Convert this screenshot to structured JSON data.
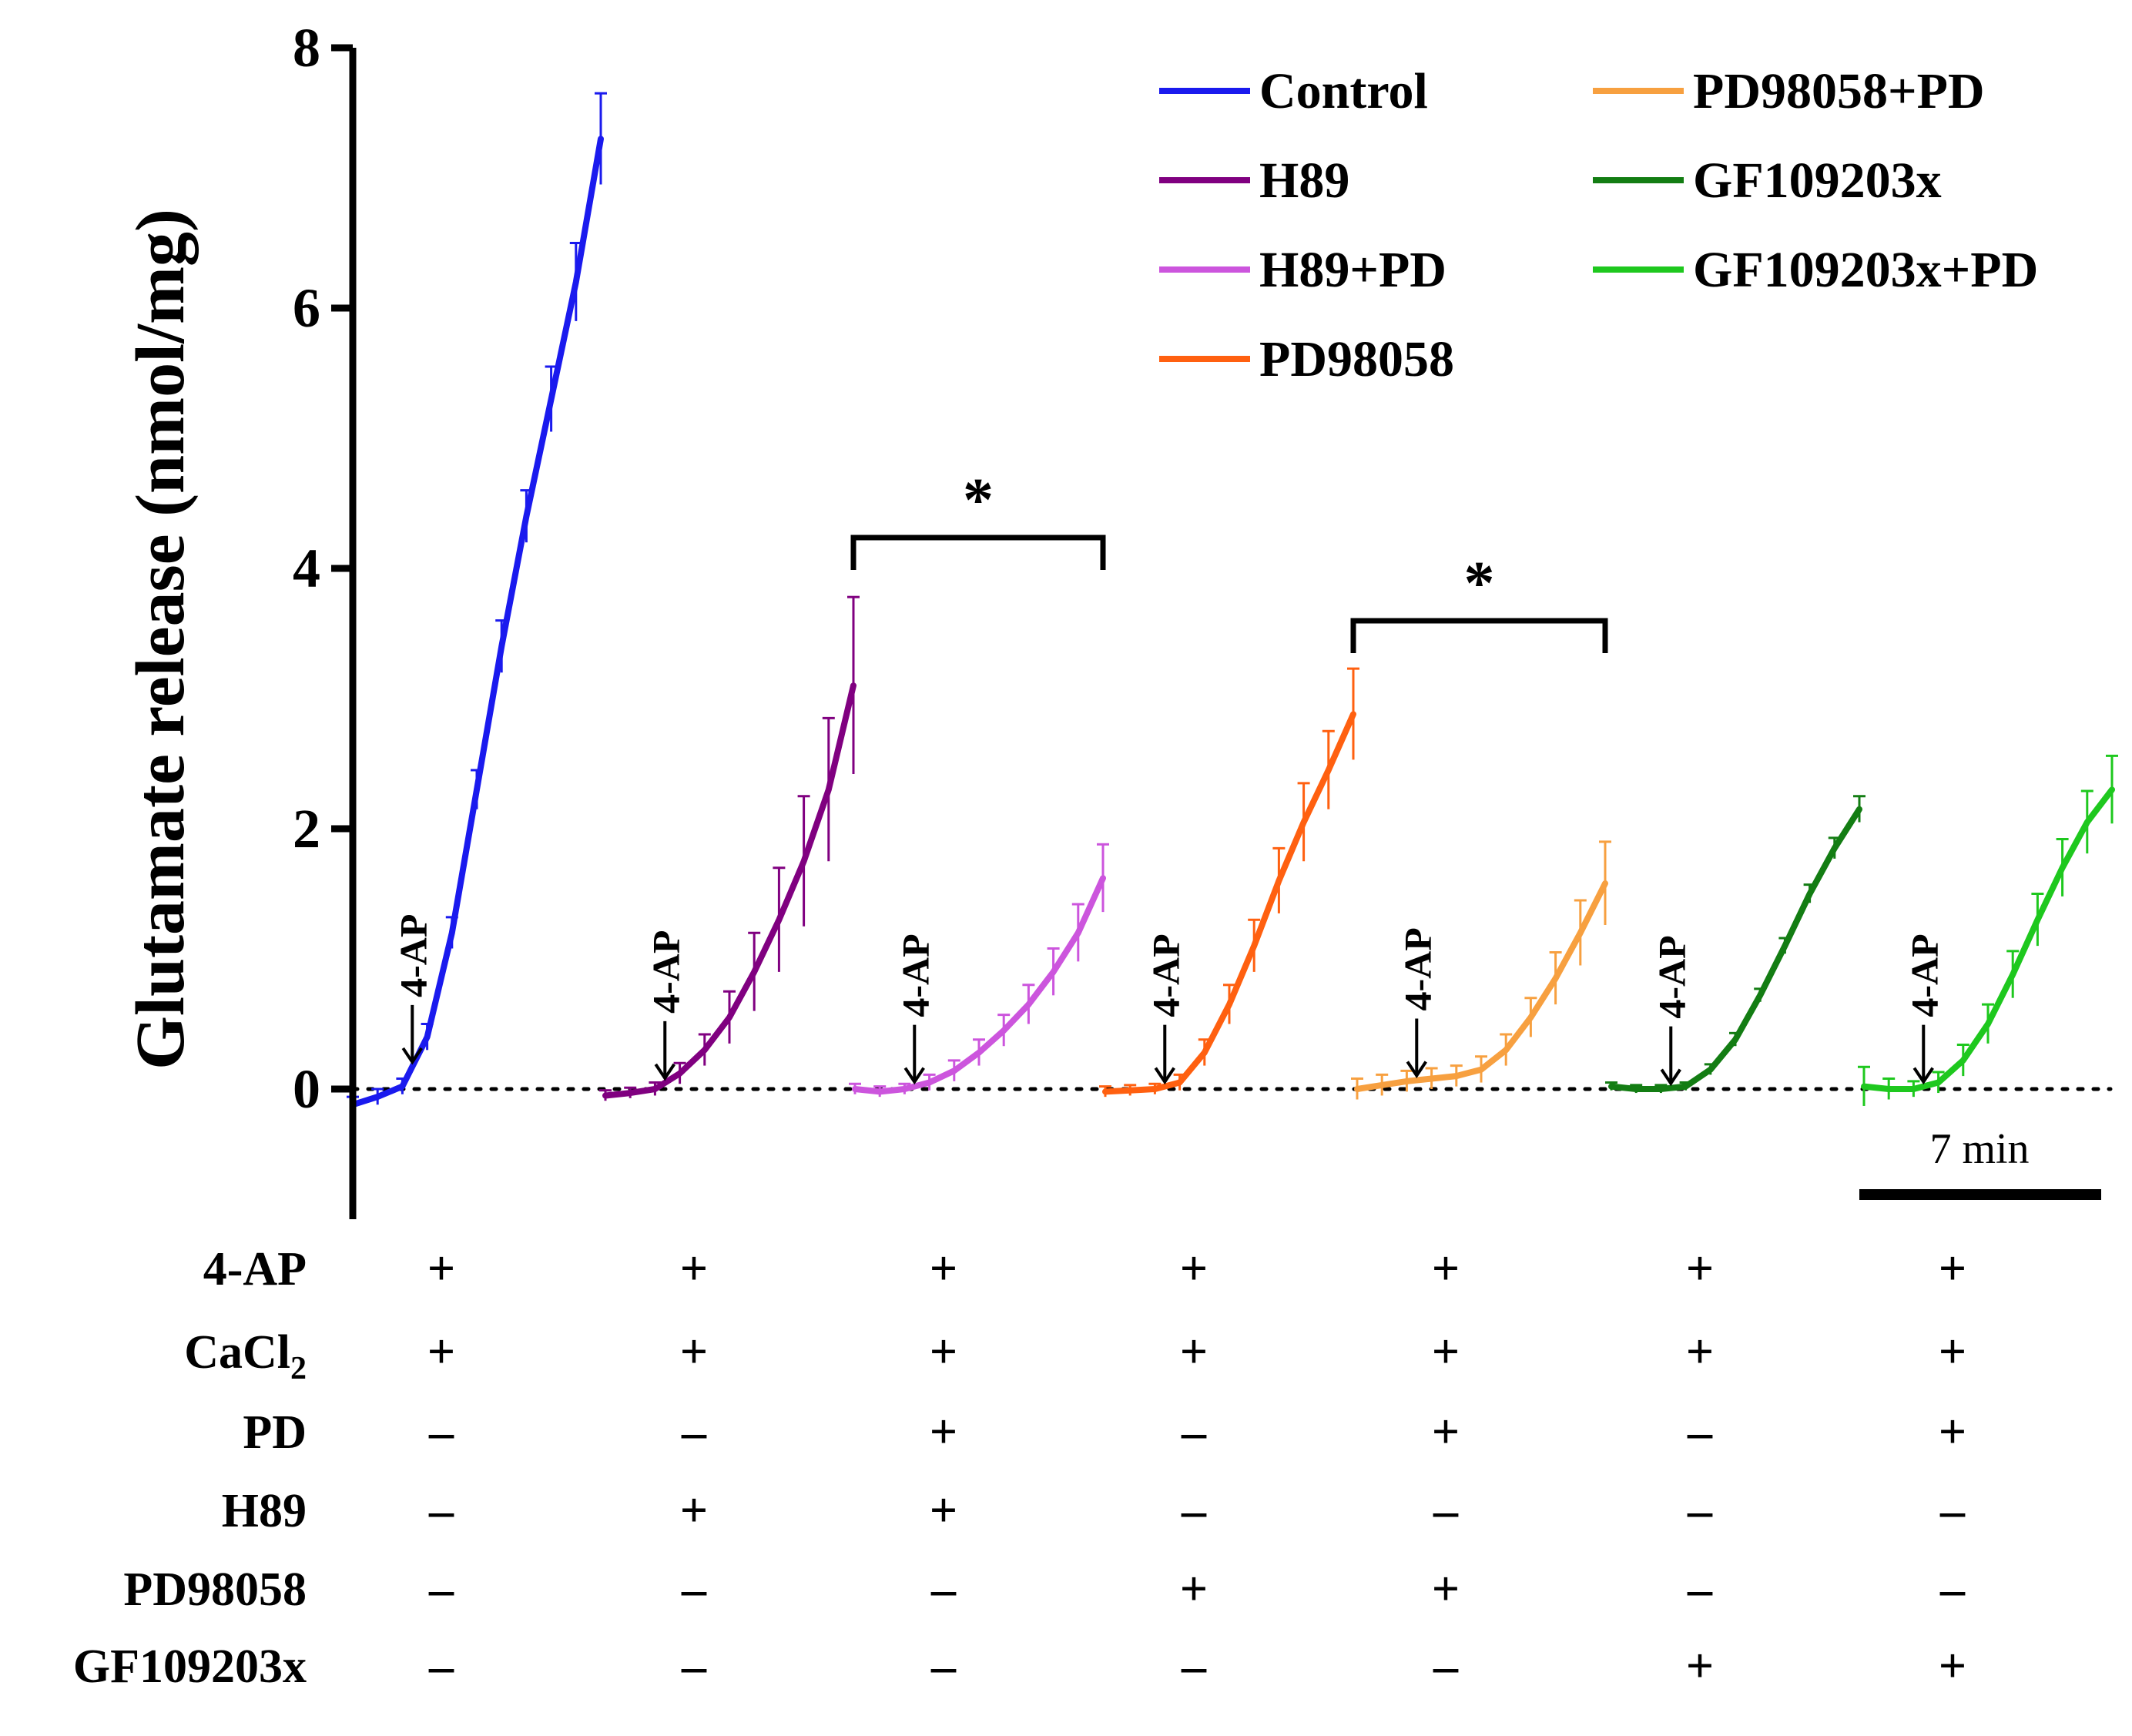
{
  "chart_data": {
    "type": "line",
    "title": "",
    "ylabel": "Glutamate release (nmol/mg)",
    "ylim": [
      -1,
      8
    ],
    "yticks": [
      "0",
      "2",
      "4",
      "6",
      "8"
    ],
    "x_unit": "min",
    "scale_bar": "7 min",
    "stimulus_label": "4-AP",
    "legend_position": "top-right",
    "series": [
      {
        "name": "Control",
        "color": "#1a1aee",
        "x": [
          0,
          1,
          2,
          3,
          4,
          5,
          6,
          7,
          8,
          9,
          10
        ],
        "y": [
          -0.12,
          -0.06,
          0.02,
          0.4,
          1.2,
          2.3,
          3.4,
          4.4,
          5.3,
          6.2,
          7.3
        ],
        "err": [
          0.06,
          0.06,
          0.06,
          0.1,
          0.12,
          0.15,
          0.2,
          0.2,
          0.25,
          0.3,
          0.35
        ]
      },
      {
        "name": "H89",
        "color": "#800080",
        "x": [
          0,
          1,
          2,
          3,
          4,
          5,
          6,
          7,
          8,
          9,
          10
        ],
        "y": [
          -0.05,
          -0.03,
          0.0,
          0.12,
          0.3,
          0.55,
          0.9,
          1.3,
          1.75,
          2.3,
          3.1
        ],
        "err": [
          0.04,
          0.04,
          0.05,
          0.08,
          0.12,
          0.2,
          0.3,
          0.4,
          0.5,
          0.55,
          0.68
        ]
      },
      {
        "name": "H89+PD",
        "color": "#cc55dd",
        "x": [
          0,
          1,
          2,
          3,
          4,
          5,
          6,
          7,
          8,
          9,
          10
        ],
        "y": [
          0.0,
          -0.02,
          0.0,
          0.05,
          0.14,
          0.28,
          0.45,
          0.65,
          0.9,
          1.2,
          1.62
        ],
        "err": [
          0.04,
          0.04,
          0.04,
          0.06,
          0.08,
          0.1,
          0.12,
          0.15,
          0.18,
          0.22,
          0.26
        ]
      },
      {
        "name": "PD98058",
        "color": "#ff6010",
        "x": [
          0,
          1,
          2,
          3,
          4,
          5,
          6,
          7,
          8,
          9,
          10
        ],
        "y": [
          -0.02,
          -0.01,
          0.0,
          0.05,
          0.28,
          0.65,
          1.1,
          1.6,
          2.05,
          2.45,
          2.88
        ],
        "err": [
          0.04,
          0.04,
          0.04,
          0.06,
          0.1,
          0.15,
          0.2,
          0.25,
          0.3,
          0.3,
          0.35
        ]
      },
      {
        "name": "PD98058+PD",
        "color": "#f7a040",
        "x": [
          0,
          1,
          2,
          3,
          4,
          5,
          6,
          7,
          8,
          9,
          10
        ],
        "y": [
          0.0,
          0.03,
          0.06,
          0.08,
          0.1,
          0.15,
          0.3,
          0.55,
          0.85,
          1.2,
          1.58
        ],
        "err": [
          0.08,
          0.08,
          0.08,
          0.08,
          0.08,
          0.1,
          0.12,
          0.15,
          0.2,
          0.25,
          0.32
        ]
      },
      {
        "name": "GF109203x",
        "color": "#137d13",
        "x": [
          0,
          1,
          2,
          3,
          4,
          5,
          6,
          7,
          8,
          9,
          10
        ],
        "y": [
          0.02,
          0.0,
          0.0,
          0.02,
          0.15,
          0.38,
          0.72,
          1.1,
          1.5,
          1.85,
          2.15
        ],
        "err": [
          0.03,
          0.03,
          0.03,
          0.03,
          0.04,
          0.05,
          0.05,
          0.06,
          0.07,
          0.08,
          0.1
        ]
      },
      {
        "name": "GF109203x+PD",
        "color": "#1ec81e",
        "x": [
          0,
          1,
          2,
          3,
          4,
          5,
          6,
          7,
          8,
          9,
          10
        ],
        "y": [
          0.02,
          0.0,
          0.0,
          0.05,
          0.22,
          0.5,
          0.88,
          1.3,
          1.7,
          2.05,
          2.3
        ],
        "err": [
          0.15,
          0.08,
          0.06,
          0.08,
          0.12,
          0.15,
          0.18,
          0.2,
          0.22,
          0.24,
          0.26
        ]
      }
    ],
    "significance": [
      {
        "between": [
          "H89",
          "H89+PD"
        ],
        "label": "*"
      },
      {
        "between": [
          "PD98058",
          "PD98058+PD"
        ],
        "label": "*"
      }
    ]
  },
  "condition_table": {
    "rows": [
      {
        "label": "4-AP",
        "values": [
          "+",
          "+",
          "+",
          "+",
          "+",
          "+",
          "+"
        ]
      },
      {
        "label": "CaCl",
        "subscript": "2",
        "values": [
          "+",
          "+",
          "+",
          "+",
          "+",
          "+",
          "+"
        ]
      },
      {
        "label": "PD",
        "values": [
          "–",
          "–",
          "+",
          "–",
          "+",
          "–",
          "+"
        ]
      },
      {
        "label": "H89",
        "values": [
          "–",
          "+",
          "+",
          "–",
          "–",
          "–",
          "–"
        ]
      },
      {
        "label": "PD98058",
        "values": [
          "–",
          "–",
          "–",
          "+",
          "+",
          "–",
          "–"
        ]
      },
      {
        "label": "GF109203x",
        "values": [
          "–",
          "–",
          "–",
          "–",
          "–",
          "+",
          "+"
        ]
      }
    ]
  }
}
